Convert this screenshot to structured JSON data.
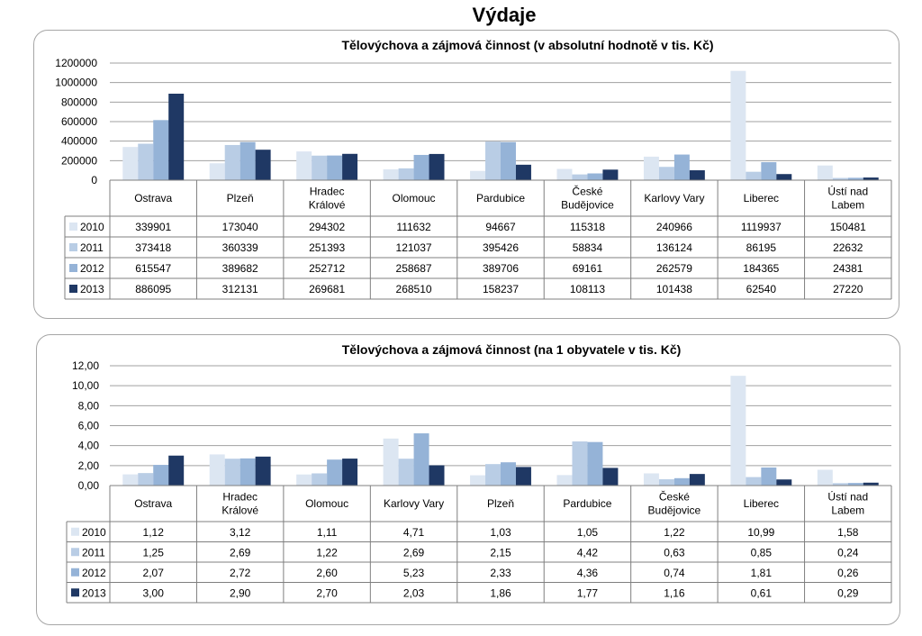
{
  "page_title": "Výdaje",
  "colors": {
    "2010": "#dce6f2",
    "2011": "#b9cde5",
    "2012": "#95b3d7",
    "2013": "#1f3864"
  },
  "chart_data": [
    {
      "type": "bar",
      "title": "Tělovýchova a zájmová činnost (v absolutní hodnotě v tis. Kč)",
      "categories": [
        "Ostrava",
        "Plzeň",
        "Hradec Králové",
        "Olomouc",
        "Pardubice",
        "České Budějovice",
        "Karlovy Vary",
        "Liberec",
        "Ústí nad Labem"
      ],
      "category_lines": [
        [
          "Ostrava"
        ],
        [
          "Plzeň"
        ],
        [
          "Hradec",
          "Králové"
        ],
        [
          "Olomouc"
        ],
        [
          "Pardubice"
        ],
        [
          "České",
          "Budějovice"
        ],
        [
          "Karlovy Vary"
        ],
        [
          "Liberec"
        ],
        [
          "Ústí nad",
          "Labem"
        ]
      ],
      "series": [
        {
          "name": "2010",
          "values": [
            339901,
            173040,
            294302,
            111632,
            94667,
            115318,
            240966,
            1119937,
            150481
          ]
        },
        {
          "name": "2011",
          "values": [
            373418,
            360339,
            251393,
            121037,
            395426,
            58834,
            136124,
            86195,
            22632
          ]
        },
        {
          "name": "2012",
          "values": [
            615547,
            389682,
            252712,
            258687,
            389706,
            69161,
            262579,
            184365,
            24381
          ]
        },
        {
          "name": "2013",
          "values": [
            886095,
            312131,
            269681,
            268510,
            158237,
            108113,
            101438,
            62540,
            27220
          ]
        }
      ],
      "table_values": [
        [
          "339901",
          "173040",
          "294302",
          "111632",
          "94667",
          "115318",
          "240966",
          "1119937",
          "150481"
        ],
        [
          "373418",
          "360339",
          "251393",
          "121037",
          "395426",
          "58834",
          "136124",
          "86195",
          "22632"
        ],
        [
          "615547",
          "389682",
          "252712",
          "258687",
          "389706",
          "69161",
          "262579",
          "184365",
          "24381"
        ],
        [
          "886095",
          "312131",
          "269681",
          "268510",
          "158237",
          "108113",
          "101438",
          "62540",
          "27220"
        ]
      ],
      "ylim": [
        0,
        1200000
      ],
      "yticks": [
        "0",
        "200000",
        "400000",
        "600000",
        "800000",
        "1000000",
        "1200000"
      ],
      "grid": true,
      "legend": "data-table"
    },
    {
      "type": "bar",
      "title": "Tělovýchova a zájmová činnost (na 1 obyvatele v tis. Kč)",
      "categories": [
        "Ostrava",
        "Hradec Králové",
        "Olomouc",
        "Karlovy Vary",
        "Plzeň",
        "Pardubice",
        "České Budějovice",
        "Liberec",
        "Ústí nad Labem"
      ],
      "category_lines": [
        [
          "Ostrava"
        ],
        [
          "Hradec",
          "Králové"
        ],
        [
          "Olomouc"
        ],
        [
          "Karlovy Vary"
        ],
        [
          "Plzeň"
        ],
        [
          "Pardubice"
        ],
        [
          "České",
          "Budějovice"
        ],
        [
          "Liberec"
        ],
        [
          "Ústí nad",
          "Labem"
        ]
      ],
      "series": [
        {
          "name": "2010",
          "values": [
            1.12,
            3.12,
            1.11,
            4.71,
            1.03,
            1.05,
            1.22,
            10.99,
            1.58
          ]
        },
        {
          "name": "2011",
          "values": [
            1.25,
            2.69,
            1.22,
            2.69,
            2.15,
            4.42,
            0.63,
            0.85,
            0.24
          ]
        },
        {
          "name": "2012",
          "values": [
            2.07,
            2.72,
            2.6,
            5.23,
            2.33,
            4.36,
            0.74,
            1.81,
            0.26
          ]
        },
        {
          "name": "2013",
          "values": [
            3.0,
            2.9,
            2.7,
            2.03,
            1.86,
            1.77,
            1.16,
            0.61,
            0.29
          ]
        }
      ],
      "table_values": [
        [
          "1,12",
          "3,12",
          "1,11",
          "4,71",
          "1,03",
          "1,05",
          "1,22",
          "10,99",
          "1,58"
        ],
        [
          "1,25",
          "2,69",
          "1,22",
          "2,69",
          "2,15",
          "4,42",
          "0,63",
          "0,85",
          "0,24"
        ],
        [
          "2,07",
          "2,72",
          "2,60",
          "5,23",
          "2,33",
          "4,36",
          "0,74",
          "1,81",
          "0,26"
        ],
        [
          "3,00",
          "2,90",
          "2,70",
          "2,03",
          "1,86",
          "1,77",
          "1,16",
          "0,61",
          "0,29"
        ]
      ],
      "ylim": [
        0,
        12
      ],
      "yticks": [
        "0,00",
        "2,00",
        "4,00",
        "6,00",
        "8,00",
        "10,00",
        "12,00"
      ],
      "grid": true,
      "legend": "data-table"
    }
  ]
}
